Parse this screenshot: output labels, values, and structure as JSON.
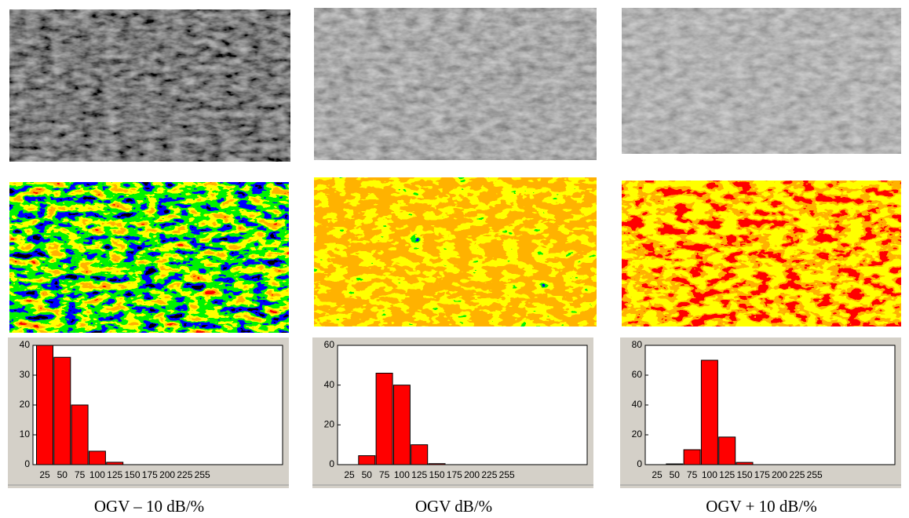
{
  "chart_data": [
    {
      "type": "bar",
      "title": "OGV – 10 dB/%",
      "categories": [
        "25",
        "50",
        "75",
        "100",
        "125",
        "150",
        "175",
        "200",
        "225",
        "255"
      ],
      "values": [
        40,
        36,
        20,
        4.5,
        0.8,
        0,
        0,
        0,
        0,
        0
      ],
      "color": "#ff0000",
      "ylim": [
        0,
        40
      ],
      "yticks": [
        0,
        10,
        20,
        30,
        40
      ]
    },
    {
      "type": "bar",
      "title": "OGV dB/%",
      "categories": [
        "25",
        "50",
        "75",
        "100",
        "125",
        "150",
        "175",
        "200",
        "225",
        "255"
      ],
      "values": [
        0,
        4.5,
        46,
        40,
        10,
        0.5,
        0,
        0,
        0,
        0
      ],
      "color": "#ff0000",
      "ylim": [
        0,
        60
      ],
      "yticks": [
        0,
        20,
        40,
        60
      ]
    },
    {
      "type": "bar",
      "title": "OGV + 10 dB/%",
      "categories": [
        "25",
        "50",
        "75",
        "100",
        "125",
        "150",
        "175",
        "200",
        "225",
        "255"
      ],
      "values": [
        0,
        0.5,
        10,
        70,
        18.5,
        1.5,
        0,
        0,
        0,
        0
      ],
      "color": "#ff0000",
      "ylim": [
        0,
        80
      ],
      "yticks": [
        0,
        20,
        40,
        60,
        80
      ]
    }
  ]
}
